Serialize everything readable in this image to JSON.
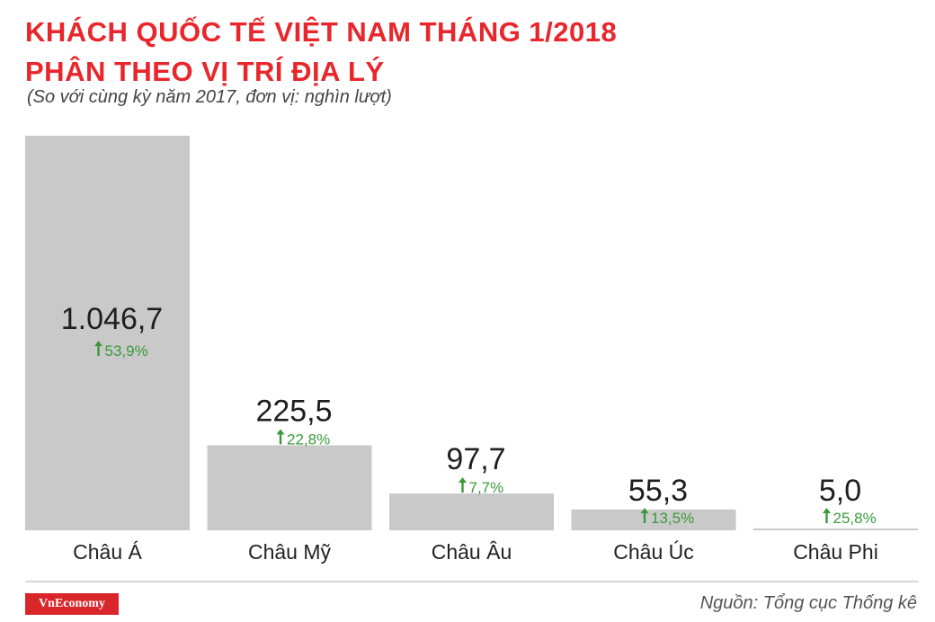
{
  "header": {
    "title_line1": "KHÁCH QUỐC TẾ VIỆT NAM THÁNG 1/2018",
    "title_line2": "PHÂN THEO VỊ TRÍ ĐỊA LÝ",
    "subtitle": "(So với cùng kỳ năm 2017, đơn vị: nghìn lượt)"
  },
  "footer": {
    "logo": "VnEconomy",
    "source": "Nguồn: Tổng cục Thống kê"
  },
  "colors": {
    "title": "#e8262c",
    "bar": "#cac9ca",
    "growth": "#3a9a3a",
    "logo_bg": "#d9262a"
  },
  "chart_data": {
    "type": "bar",
    "title": "KHÁCH QUỐC TẾ VIỆT NAM THÁNG 1/2018 PHÂN THEO VỊ TRÍ ĐỊA LÝ",
    "categories": [
      "Châu Á",
      "Châu Mỹ",
      "Châu Âu",
      "Châu Úc",
      "Châu Phi"
    ],
    "values": [
      1046.7,
      225.5,
      97.7,
      55.3,
      5.0
    ],
    "value_labels": [
      "1.046,7",
      "225,5",
      "97,7",
      "55,3",
      "5,0"
    ],
    "growth_labels": [
      "53,9%",
      "22,8%",
      "7,7%",
      "13,5%",
      "25,8%"
    ],
    "growth_icon": "arrow-up-icon",
    "ylim": [
      0,
      1046.7
    ],
    "grid": false
  }
}
